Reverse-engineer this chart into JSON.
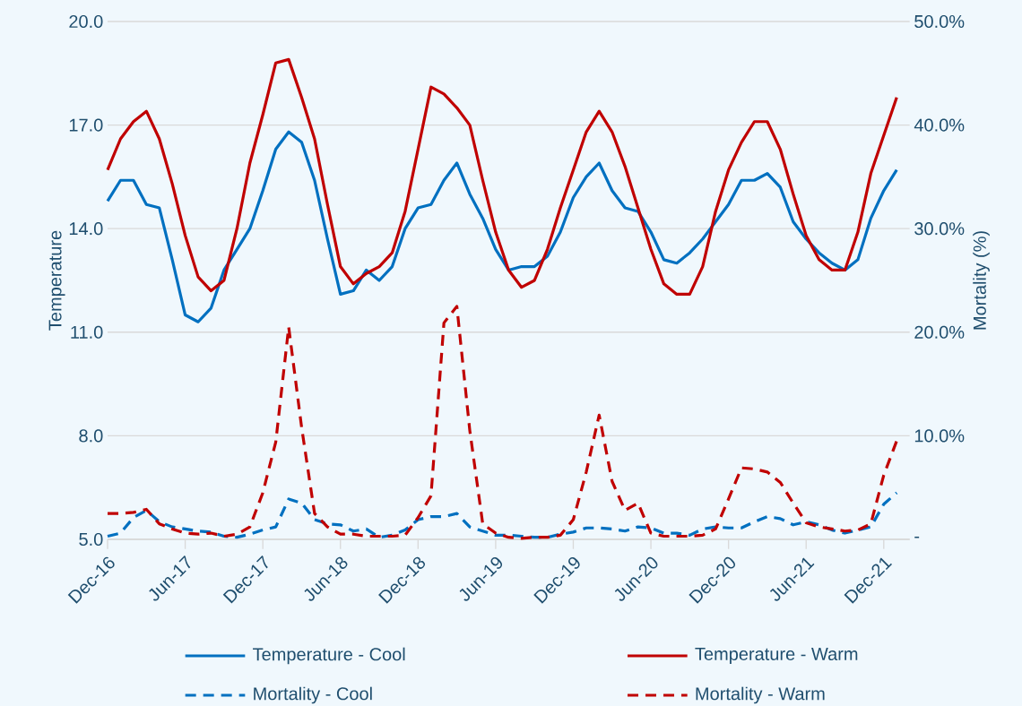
{
  "chart_data": {
    "type": "line",
    "ylabel": "Temperature",
    "y2label": "Mortality (%)",
    "x": [
      "2016-12",
      "2017-01",
      "2017-02",
      "2017-03",
      "2017-04",
      "2017-05",
      "2017-06",
      "2017-07",
      "2017-08",
      "2017-09",
      "2017-10",
      "2017-11",
      "2017-12",
      "2018-01",
      "2018-02",
      "2018-03",
      "2018-04",
      "2018-05",
      "2018-06",
      "2018-07",
      "2018-08",
      "2018-09",
      "2018-10",
      "2018-11",
      "2018-12",
      "2019-01",
      "2019-02",
      "2019-03",
      "2019-04",
      "2019-05",
      "2019-06",
      "2019-07",
      "2019-08",
      "2019-09",
      "2019-10",
      "2019-11",
      "2019-12",
      "2020-01",
      "2020-02",
      "2020-03",
      "2020-04",
      "2020-05",
      "2020-06",
      "2020-07",
      "2020-08",
      "2020-09",
      "2020-10",
      "2020-11",
      "2020-12",
      "2021-01",
      "2021-02",
      "2021-03",
      "2021-04",
      "2021-05",
      "2021-06",
      "2021-07",
      "2021-08",
      "2021-09",
      "2021-10",
      "2021-11",
      "2021-12",
      "2022-01"
    ],
    "series": [
      {
        "name": "Temperature - Cool",
        "color": "#0070c0",
        "line_style": "solid",
        "values": [
          14.8,
          15.4,
          15.4,
          14.7,
          14.6,
          13.1,
          11.5,
          11.3,
          11.7,
          12.8,
          13.4,
          14.0,
          15.1,
          16.3,
          16.8,
          16.5,
          15.4,
          13.7,
          12.1,
          12.2,
          12.8,
          12.5,
          12.9,
          14.0,
          14.6,
          14.7,
          15.4,
          15.9,
          15.0,
          14.3,
          13.4,
          12.8,
          12.9,
          12.9,
          13.2,
          13.9,
          14.9,
          15.5,
          15.9,
          15.1,
          14.6,
          14.5,
          13.9,
          13.1,
          13.0,
          13.3,
          13.7,
          14.2,
          14.7,
          15.4,
          15.4,
          15.6,
          15.2,
          14.2,
          13.7,
          13.3,
          13.0,
          12.8,
          13.1,
          14.3,
          15.1,
          15.7
        ]
      },
      {
        "name": "Temperature - Warm",
        "color": "#c00000",
        "line_style": "solid",
        "values": [
          15.7,
          16.6,
          17.1,
          17.4,
          16.6,
          15.3,
          13.8,
          12.6,
          12.2,
          12.5,
          14.0,
          15.9,
          17.3,
          18.8,
          18.9,
          17.8,
          16.6,
          14.7,
          12.9,
          12.4,
          12.7,
          12.9,
          13.3,
          14.5,
          16.3,
          18.1,
          17.9,
          17.5,
          17.0,
          15.4,
          13.9,
          12.8,
          12.3,
          12.5,
          13.4,
          14.6,
          15.7,
          16.8,
          17.4,
          16.8,
          15.8,
          14.6,
          13.4,
          12.4,
          12.1,
          12.1,
          12.9,
          14.5,
          15.7,
          16.5,
          17.1,
          17.1,
          16.3,
          15.0,
          13.8,
          13.1,
          12.8,
          12.8,
          13.9,
          15.6,
          16.7,
          17.8
        ]
      },
      {
        "name": "Mortality - Cool",
        "color": "#0070c0",
        "line_style": "dashed",
        "axis": "y2",
        "values": [
          0.3,
          0.6,
          2.1,
          2.8,
          1.7,
          1.2,
          1.0,
          0.8,
          0.7,
          0.3,
          0.2,
          0.5,
          0.9,
          1.2,
          3.9,
          3.5,
          1.9,
          1.5,
          1.4,
          0.8,
          1.0,
          0.2,
          0.4,
          0.9,
          1.9,
          2.2,
          2.2,
          2.5,
          1.2,
          0.8,
          0.4,
          0.4,
          0.3,
          0.2,
          0.2,
          0.5,
          0.7,
          1.1,
          1.1,
          1.0,
          0.8,
          1.2,
          1.1,
          0.6,
          0.6,
          0.4,
          1.0,
          1.2,
          1.1,
          1.1,
          1.7,
          2.2,
          2.0,
          1.4,
          1.7,
          1.4,
          0.9,
          0.6,
          0.9,
          1.2,
          3.4,
          4.5
        ]
      },
      {
        "name": "Mortality - Warm",
        "color": "#c00000",
        "line_style": "dashed",
        "axis": "y2",
        "values": [
          2.5,
          2.5,
          2.6,
          2.9,
          1.5,
          1.0,
          0.6,
          0.5,
          0.6,
          0.3,
          0.5,
          1.2,
          4.5,
          9.4,
          20.5,
          10.8,
          2.5,
          1.2,
          0.5,
          0.5,
          0.3,
          0.3,
          0.3,
          0.4,
          2.1,
          4.2,
          20.9,
          22.5,
          10.5,
          1.5,
          0.6,
          0.2,
          0.1,
          0.2,
          0.2,
          0.4,
          1.9,
          6.5,
          12.0,
          5.6,
          2.8,
          3.5,
          0.6,
          0.3,
          0.3,
          0.3,
          0.4,
          1.0,
          3.9,
          6.9,
          6.8,
          6.5,
          5.5,
          3.5,
          1.6,
          1.2,
          1.0,
          0.8,
          0.9,
          1.5,
          6.2,
          9.5
        ]
      }
    ],
    "xlim": [
      "2016-12",
      "2022-02"
    ],
    "xticks": [
      {
        "value": "2016-12",
        "label": "Dec-16"
      },
      {
        "value": "2017-06",
        "label": "Jun-17"
      },
      {
        "value": "2017-12",
        "label": "Dec-17"
      },
      {
        "value": "2018-06",
        "label": "Jun-18"
      },
      {
        "value": "2018-12",
        "label": "Dec-18"
      },
      {
        "value": "2019-06",
        "label": "Jun-19"
      },
      {
        "value": "2019-12",
        "label": "Dec-19"
      },
      {
        "value": "2020-06",
        "label": "Jun-20"
      },
      {
        "value": "2020-12",
        "label": "Dec-20"
      },
      {
        "value": "2021-06",
        "label": "Jun-21"
      },
      {
        "value": "2021-12",
        "label": "Dec-21"
      }
    ],
    "ylim": [
      5,
      20
    ],
    "yticks": [
      {
        "value": 5,
        "label": "5.0"
      },
      {
        "value": 8,
        "label": "8.0"
      },
      {
        "value": 11,
        "label": "11.0"
      },
      {
        "value": 14,
        "label": "14.0"
      },
      {
        "value": 17,
        "label": "17.0"
      },
      {
        "value": 20,
        "label": "20.0"
      }
    ],
    "y2lim": [
      0,
      50
    ],
    "y2ticks": [
      {
        "value": 0,
        "label": "-"
      },
      {
        "value": 10,
        "label": "10.0%"
      },
      {
        "value": 20,
        "label": "20.0%"
      },
      {
        "value": 30,
        "label": "30.0%"
      },
      {
        "value": 40,
        "label": "40.0%"
      },
      {
        "value": 50,
        "label": "50.0%"
      }
    ],
    "grid": "y",
    "legend": "bottom"
  }
}
